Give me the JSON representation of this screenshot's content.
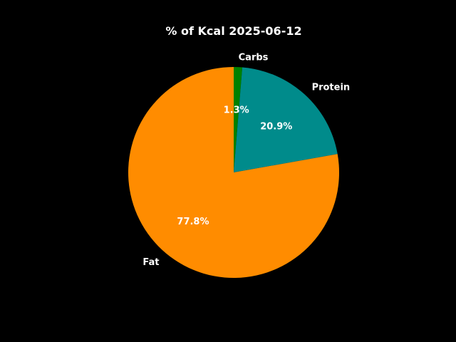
{
  "chart_data": {
    "type": "pie",
    "title": "% of Kcal 2025-06-12",
    "start_angle_deg": 90,
    "direction": "clockwise",
    "slices": [
      {
        "label": "Carbs",
        "value": 1.3,
        "pct_label": "1.3%",
        "color": "#008000"
      },
      {
        "label": "Protein",
        "value": 20.9,
        "pct_label": "20.9%",
        "color": "#008b8b"
      },
      {
        "label": "Fat",
        "value": 77.8,
        "pct_label": "77.8%",
        "color": "#ff8c00"
      }
    ]
  }
}
